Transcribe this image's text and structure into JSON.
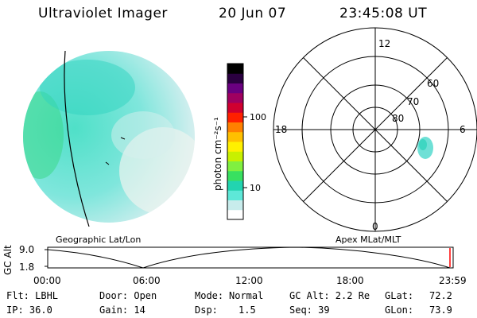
{
  "header": {
    "title": "Ultraviolet Imager",
    "date": "20 Jun 07",
    "time": "23:45:08 UT"
  },
  "colorbar": {
    "unit_label": "photon cm⁻²s⁻¹",
    "ticks": [
      "100",
      "10"
    ],
    "colors": [
      "#ffffff",
      "#c8ecec",
      "#5ee8d8",
      "#22d4b0",
      "#38e060",
      "#80f040",
      "#c8f000",
      "#fff000",
      "#ffc000",
      "#ff8000",
      "#ff2000",
      "#d00030",
      "#a00060",
      "#6a0080",
      "#2a0040",
      "#000000"
    ]
  },
  "left_panel": {
    "label": "Geographic Lat/Lon"
  },
  "right_panel": {
    "label": "Apex  MLat/MLT",
    "mlt_labels": {
      "top": "12",
      "left": "18",
      "right": "6",
      "bottom": "0"
    },
    "lat_labels": [
      "60",
      "70",
      "80"
    ]
  },
  "timeline": {
    "ylabel": "GC Alt",
    "yticks": [
      "9.0",
      "1.8"
    ],
    "xticks": [
      "00:00",
      "06:00",
      "12:00",
      "18:00",
      "23:59"
    ]
  },
  "info": {
    "col1": [
      "Flt: LBHL",
      "IP: 36.0"
    ],
    "col2": [
      "Door: Open",
      "Gain: 14"
    ],
    "col3_labels": [
      "Mode:",
      "Dsp:"
    ],
    "col3_values": [
      "Normal",
      "1.5"
    ],
    "col4": [
      "GC Alt: 2.2 Re",
      "Seq: 39"
    ],
    "col5_labels": [
      "GLat:",
      "GLon:"
    ],
    "col5_values": [
      "72.2",
      "73.9"
    ]
  }
}
